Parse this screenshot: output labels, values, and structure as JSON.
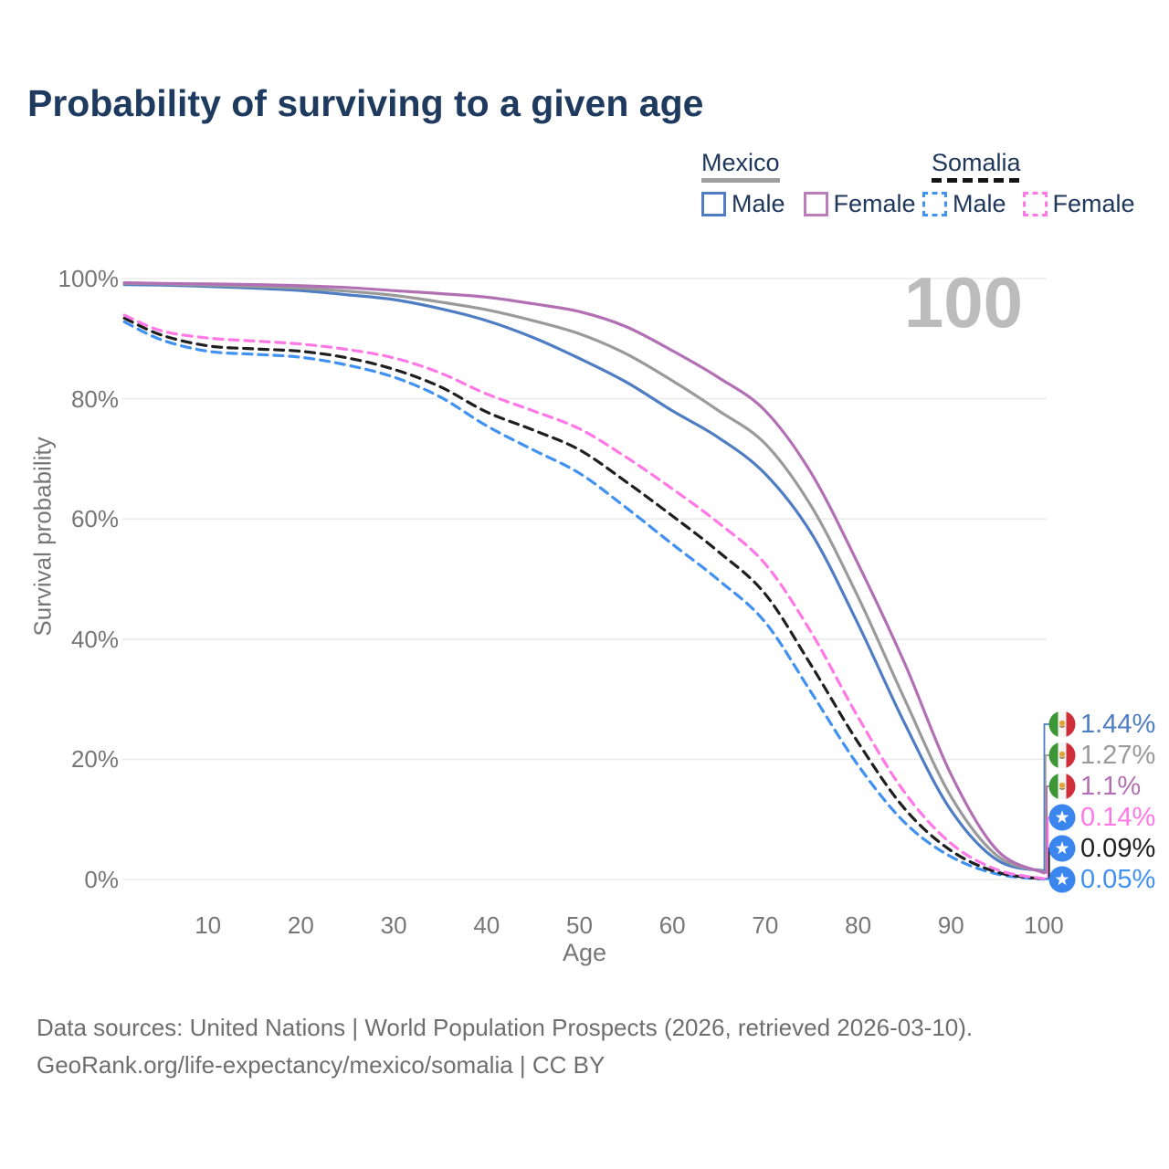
{
  "title": "Probability of surviving to a given age",
  "watermark_age": "100",
  "legend": {
    "mexico": {
      "title": "Mexico",
      "male": "Male",
      "female": "Female"
    },
    "somalia": {
      "title": "Somalia",
      "male": "Male",
      "female": "Female"
    }
  },
  "axes": {
    "y_title": "Survival probability",
    "x_title": "Age",
    "y_ticks": [
      "100%",
      "80%",
      "60%",
      "40%",
      "20%",
      "0%"
    ],
    "x_ticks": [
      "10",
      "20",
      "30",
      "40",
      "50",
      "60",
      "70",
      "80",
      "90",
      "100"
    ]
  },
  "footer": {
    "line1": "Data sources: United Nations | World Population Prospects (2026, retrieved 2026-03-10).",
    "line2": "GeoRank.org/life-expectancy/mexico/somalia | CC BY"
  },
  "colors": {
    "title_navy": "#1e3a5f",
    "axis_gray": "#767676",
    "grid": "#ebebeb",
    "watermark": "#bcbcbc",
    "mexico_male": "#4f7dc3",
    "mexico_total": "#9a9a9a",
    "mexico_female": "#b36fb4",
    "somalia_male": "#4191f1",
    "somalia_total": "#1f1f1f",
    "somalia_female": "#ff78e6"
  },
  "chart_data": {
    "type": "line",
    "title": "Probability of surviving to a given age",
    "xlabel": "Age",
    "ylabel": "Survival probability",
    "x_range": [
      1,
      100
    ],
    "y_range_pct": [
      0,
      100
    ],
    "grid": "horizontal",
    "legend_position": "top-right",
    "ages": [
      1,
      5,
      10,
      15,
      20,
      25,
      30,
      35,
      40,
      45,
      50,
      55,
      60,
      65,
      70,
      75,
      80,
      85,
      90,
      95,
      100
    ],
    "series": [
      {
        "name": "Somalia Male",
        "country": "somalia",
        "sex": "male",
        "color": "#4191f1",
        "dashed": true,
        "values_pct": [
          92.8,
          89.8,
          87.9,
          87.4,
          86.9,
          85.6,
          83.6,
          80.3,
          75.5,
          71.5,
          67.6,
          61.9,
          55.8,
          49.8,
          42.8,
          31.0,
          19.0,
          9.5,
          3.8,
          0.9,
          0.05
        ]
      },
      {
        "name": "Somalia Both",
        "country": "somalia",
        "sex": "both",
        "color": "#1f1f1f",
        "dashed": true,
        "values_pct": [
          93.4,
          90.6,
          88.8,
          88.3,
          87.9,
          86.8,
          84.9,
          82.0,
          77.8,
          74.8,
          71.5,
          66.2,
          60.5,
          54.5,
          47.5,
          35.5,
          22.8,
          11.8,
          4.8,
          1.2,
          0.09
        ]
      },
      {
        "name": "Somalia Female",
        "country": "somalia",
        "sex": "female",
        "color": "#ff78e6",
        "dashed": true,
        "values_pct": [
          93.9,
          91.3,
          90.1,
          89.6,
          89.1,
          88.2,
          86.8,
          84.3,
          80.8,
          78.0,
          75.0,
          70.3,
          65.0,
          59.3,
          52.5,
          41.0,
          27.0,
          14.5,
          6.0,
          1.6,
          0.14
        ]
      },
      {
        "name": "Mexico Male",
        "country": "mexico",
        "sex": "male",
        "color": "#4f7dc3",
        "dashed": false,
        "values_pct": [
          99.0,
          98.9,
          98.7,
          98.4,
          98.0,
          97.3,
          96.5,
          95.0,
          93.0,
          90.2,
          86.7,
          82.8,
          78.0,
          73.5,
          67.5,
          57.5,
          42.5,
          26.0,
          11.5,
          3.2,
          1.44
        ]
      },
      {
        "name": "Mexico Both",
        "country": "mexico",
        "sex": "both",
        "color": "#9a9a9a",
        "dashed": false,
        "values_pct": [
          99.2,
          99.1,
          98.9,
          98.7,
          98.4,
          97.9,
          97.2,
          96.1,
          94.8,
          93.0,
          90.8,
          87.5,
          83.0,
          78.0,
          72.5,
          62.0,
          47.0,
          30.0,
          13.8,
          3.9,
          1.27
        ]
      },
      {
        "name": "Mexico Female",
        "country": "mexico",
        "sex": "female",
        "color": "#b36fb4",
        "dashed": false,
        "values_pct": [
          99.3,
          99.2,
          99.1,
          99.0,
          98.8,
          98.5,
          98.0,
          97.5,
          96.9,
          95.8,
          94.5,
          92.0,
          88.0,
          83.5,
          78.0,
          67.5,
          52.5,
          36.0,
          17.5,
          4.8,
          1.1
        ]
      }
    ],
    "end_labels": [
      {
        "country": "mexico",
        "value": "1.44%",
        "pct": 1.44,
        "color": "#4f7dc3"
      },
      {
        "country": "mexico",
        "value": "1.27%",
        "pct": 1.27,
        "color": "#9a9a9a"
      },
      {
        "country": "mexico",
        "value": "1.1%",
        "pct": 1.1,
        "color": "#b36fb4"
      },
      {
        "country": "somalia",
        "value": "0.14%",
        "pct": 0.14,
        "color": "#ff78e6"
      },
      {
        "country": "somalia",
        "value": "0.09%",
        "pct": 0.09,
        "color": "#1f1f1f"
      },
      {
        "country": "somalia",
        "value": "0.05%",
        "pct": 0.05,
        "color": "#4191f1"
      }
    ]
  }
}
